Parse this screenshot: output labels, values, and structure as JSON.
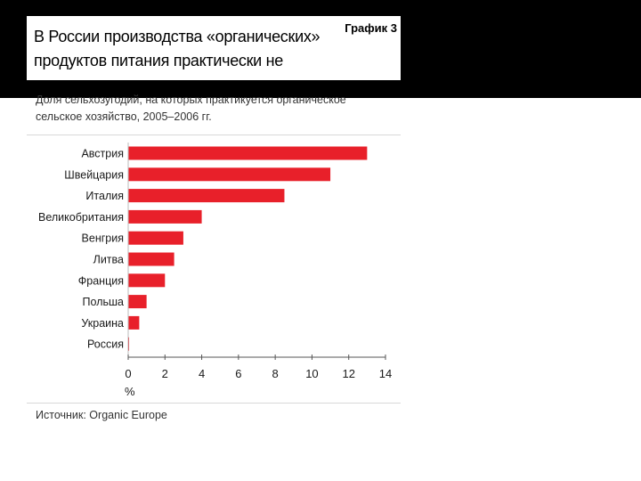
{
  "header": {
    "title_line1": "В России производства «органических»",
    "title_line2": "продуктов питания практически не существует",
    "graph_label": "График 3"
  },
  "subtitle": {
    "line1": "Доля сельхозугодий, на которых практикуется органическое",
    "line2": "сельское хозяйство, 2005–2006 гг."
  },
  "source": "Источник: Organic Europe",
  "chart_data": {
    "type": "bar",
    "orientation": "horizontal",
    "categories": [
      "Австрия",
      "Швейцария",
      "Италия",
      "Великобритания",
      "Венгрия",
      "Литва",
      "Франция",
      "Польша",
      "Украина",
      "Россия"
    ],
    "values": [
      13.0,
      11.0,
      8.5,
      4.0,
      3.0,
      2.5,
      2.0,
      1.0,
      0.6,
      0.05
    ],
    "xlabel": "%",
    "xlim": [
      0,
      14
    ],
    "xticks": [
      "0",
      "2",
      "4",
      "6",
      "8",
      "10",
      "12",
      "14"
    ],
    "bar_color": "#e8202a",
    "grid": false
  }
}
